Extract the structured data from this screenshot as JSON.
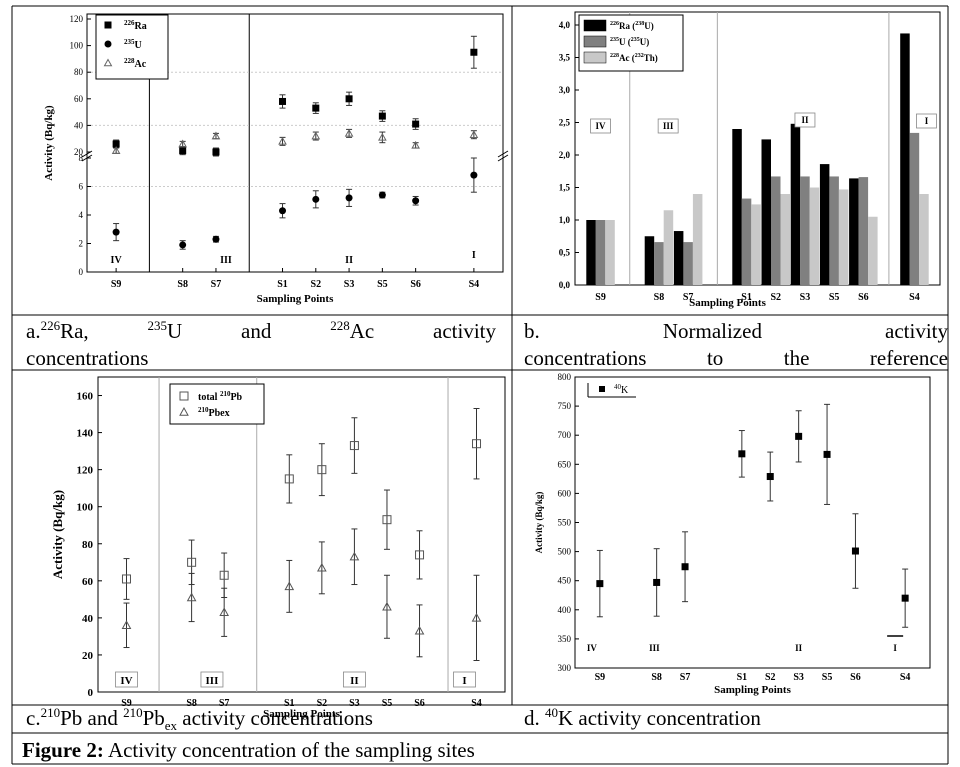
{
  "caption": {
    "label": "Figure 2:",
    "text": " Activity concentration of the sampling sites"
  },
  "panel_captions": {
    "a": {
      "prefix": "a.",
      "sup1": "226",
      "t1": "Ra, ",
      "sup2": "235",
      "t2": "U and ",
      "sup3": "228",
      "t3": "Ac activity",
      "line2": "concentrations"
    },
    "b": {
      "line1": "b. Normalized activity",
      "line2": "concentrations to the reference"
    },
    "c": {
      "prefix": "c.",
      "sup1": "210",
      "t1": "Pb and ",
      "sup2": "210",
      "t2": "Pb",
      "sub1": "ex",
      "t3": " activity concentrations"
    },
    "d": {
      "prefix": "d. ",
      "sup1": "40",
      "t1": "K activity concentration"
    }
  },
  "chart_data": [
    {
      "id": "a",
      "type": "scatter",
      "xlabel": "Sampling Points",
      "ylabel": "Activity (Bq/kg)",
      "categories": [
        "S9",
        "S8",
        "S7",
        "S1",
        "S2",
        "S3",
        "S5",
        "S6",
        "S4"
      ],
      "x": [
        1,
        2.6,
        3.4,
        5,
        5.8,
        6.6,
        7.4,
        8.2,
        9.6
      ],
      "upper_ylim": [
        20,
        120
      ],
      "upper_yticks": [
        20,
        40,
        60,
        80,
        100,
        120
      ],
      "lower_ylim": [
        0,
        8
      ],
      "lower_yticks": [
        0,
        2,
        4,
        6,
        8
      ],
      "zones": [
        {
          "label": "IV",
          "x": 1
        },
        {
          "label": "III",
          "x": 3.1
        },
        {
          "label": "II",
          "x": 6.6
        },
        {
          "label": "I",
          "x": 9.6
        }
      ],
      "legend": [
        "226Ra",
        "235U",
        "228Ac"
      ],
      "series": [
        {
          "name": "226Ra",
          "marker": "square",
          "values": [
            26,
            21,
            20,
            58,
            53,
            60,
            47,
            41,
            95
          ],
          "err": [
            3,
            3,
            3,
            5,
            4,
            5,
            4,
            4,
            12
          ]
        },
        {
          "name": "228Ac",
          "marker": "triangle",
          "values": [
            21,
            26,
            32,
            28,
            32,
            34,
            31,
            25,
            33
          ],
          "err": [
            2,
            2,
            2,
            3,
            3,
            3,
            4,
            2,
            3
          ]
        },
        {
          "name": "235U",
          "marker": "circle",
          "values": [
            2.8,
            1.9,
            2.3,
            4.3,
            5.1,
            5.2,
            5.4,
            5.0,
            6.8
          ],
          "err": [
            0.6,
            0.3,
            0.2,
            0.5,
            0.6,
            0.6,
            0.2,
            0.3,
            1.2
          ]
        }
      ]
    },
    {
      "id": "b",
      "type": "bar",
      "xlabel": "Sampling Points",
      "categories": [
        "S9",
        "S8",
        "S7",
        "S1",
        "S2",
        "S3",
        "S5",
        "S6",
        "S4"
      ],
      "x": [
        1,
        2.6,
        3.4,
        5,
        5.8,
        6.6,
        7.4,
        8.2,
        9.6
      ],
      "ylim": [
        0,
        4.2
      ],
      "yticks": [
        "0,0",
        "0,5",
        "1,0",
        "1,5",
        "2,0",
        "2,5",
        "3,0",
        "3,5",
        "4,0"
      ],
      "zones": [
        {
          "label": "IV",
          "x": 1
        },
        {
          "label": "III",
          "x": 3.1
        },
        {
          "label": "II",
          "x": 6.6
        },
        {
          "label": "I",
          "x": 9.6
        }
      ],
      "legend": [
        "226Ra (238U)",
        "235U (235U)",
        "228Ac (232Th)"
      ],
      "colors": [
        "#000000",
        "#808080",
        "#c8c8c8"
      ],
      "series": [
        {
          "name": "226Ra (238U)",
          "values": [
            1.0,
            0.75,
            0.83,
            2.4,
            2.24,
            2.48,
            1.86,
            1.64,
            3.87
          ]
        },
        {
          "name": "235U (235U)",
          "values": [
            1.0,
            0.66,
            0.66,
            1.33,
            1.67,
            1.67,
            1.67,
            1.66,
            2.34
          ]
        },
        {
          "name": "228Ac (232Th)",
          "values": [
            1.0,
            1.15,
            1.4,
            1.24,
            1.4,
            1.5,
            1.47,
            1.05,
            1.4
          ]
        }
      ]
    },
    {
      "id": "c",
      "type": "scatter",
      "xlabel": "Sampling Points",
      "ylabel": "Activity (Bq/kg)",
      "categories": [
        "S9",
        "S8",
        "S7",
        "S1",
        "S2",
        "S3",
        "S5",
        "S6",
        "S4"
      ],
      "x": [
        1,
        2.6,
        3.4,
        5,
        5.8,
        6.6,
        7.4,
        8.2,
        9.6
      ],
      "ylim": [
        0,
        170
      ],
      "yticks": [
        0,
        20,
        40,
        60,
        80,
        100,
        120,
        140,
        160
      ],
      "zones": [
        {
          "label": "IV",
          "x": 1
        },
        {
          "label": "III",
          "x": 3.1
        },
        {
          "label": "II",
          "x": 6.6
        },
        {
          "label": "I",
          "x": 9.6
        }
      ],
      "legend": [
        "total 210Pb",
        "210Pbex"
      ],
      "series": [
        {
          "name": "total 210Pb",
          "marker": "open-square",
          "values": [
            61,
            70,
            63,
            115,
            120,
            133,
            93,
            74,
            134
          ],
          "err": [
            11,
            12,
            12,
            13,
            14,
            15,
            16,
            13,
            19
          ]
        },
        {
          "name": "210Pbex",
          "marker": "open-triangle",
          "values": [
            36,
            51,
            43,
            57,
            67,
            73,
            46,
            33,
            40
          ],
          "err": [
            12,
            13,
            13,
            14,
            14,
            15,
            17,
            14,
            23
          ]
        }
      ]
    },
    {
      "id": "d",
      "type": "scatter",
      "xlabel": "Sampling Points",
      "ylabel": "Activity (Bq/kg)",
      "categories": [
        "S9",
        "S8",
        "S7",
        "S1",
        "S2",
        "S3",
        "S5",
        "S6",
        "S4"
      ],
      "x": [
        1,
        2.6,
        3.4,
        5,
        5.8,
        6.6,
        7.4,
        8.2,
        9.6
      ],
      "ylim": [
        300,
        800
      ],
      "yticks": [
        300,
        350,
        400,
        450,
        500,
        550,
        600,
        650,
        700,
        750,
        800
      ],
      "zones": [
        {
          "label": "IV",
          "x": 1
        },
        {
          "label": "III",
          "x": 3.1
        },
        {
          "label": "II",
          "x": 6.6
        },
        {
          "label": "I",
          "x": 9.6
        }
      ],
      "legend": [
        "40K"
      ],
      "series": [
        {
          "name": "40K",
          "marker": "square",
          "values": [
            445,
            447,
            474,
            668,
            629,
            698,
            667,
            501,
            420
          ],
          "err": [
            57,
            58,
            60,
            40,
            42,
            44,
            86,
            64,
            50
          ]
        }
      ]
    }
  ]
}
